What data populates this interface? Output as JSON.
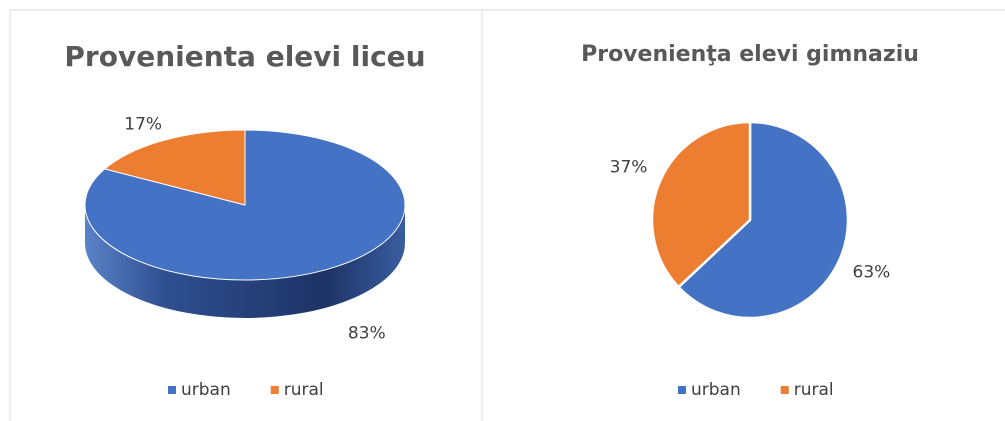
{
  "chart_data": [
    {
      "type": "pie3d",
      "title": "Provenienta elevi liceu",
      "categories": [
        "urban",
        "rural"
      ],
      "values": [
        83,
        17
      ],
      "value_labels": [
        "83%",
        "17%"
      ],
      "colors": [
        "#4472c4",
        "#ed7d31"
      ],
      "legend": "bottom"
    },
    {
      "type": "pie",
      "title": "Provenienţa elevi gimnaziu",
      "categories": [
        "urban",
        "rural"
      ],
      "values": [
        63,
        37
      ],
      "value_labels": [
        "63%",
        "37%"
      ],
      "colors": [
        "#4472c4",
        "#ed7d31"
      ],
      "legend": "bottom"
    }
  ]
}
